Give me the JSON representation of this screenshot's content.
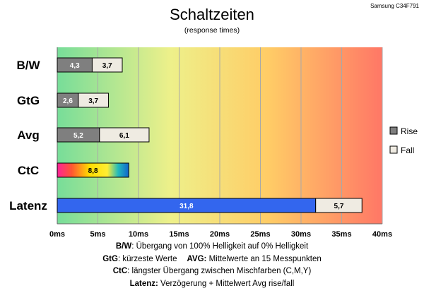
{
  "chart_data": {
    "type": "bar",
    "title": "Schaltzeiten",
    "subtitle": "(response times)",
    "corner_label": "Samsung C34F791",
    "categories": [
      "B/W",
      "GtG",
      "Avg",
      "CtC",
      "Latenz"
    ],
    "series": [
      {
        "name": "Rise",
        "color": "#7f7f7f",
        "values": [
          4.3,
          2.6,
          5.2,
          null,
          null
        ]
      },
      {
        "name": "Fall",
        "color": "#efebe2",
        "values": [
          3.7,
          3.7,
          6.1,
          null,
          5.7
        ]
      }
    ],
    "ctc_value": 8.8,
    "latenz_value": 31.8,
    "latenz_color": "#3366ee",
    "x_ticks": [
      "0ms",
      "5ms",
      "10ms",
      "15ms",
      "20ms",
      "25ms",
      "30ms",
      "35ms",
      "40ms"
    ],
    "xlim": [
      0,
      40
    ],
    "stacked": true,
    "orientation": "horizontal",
    "grid": true,
    "legend_position": "right",
    "background_gradient": [
      "#77dd99",
      "#eef08a",
      "#ffcc66",
      "#ff7766"
    ]
  },
  "footer": {
    "line1_key": "B/W",
    "line1_text": ":  Übergang von 100% Helligkeit auf 0% Helligkeit",
    "line2_key_a": "GtG",
    "line2_text_a": ": kürzeste  Werte",
    "line2_key_b": "AVG:",
    "line2_text_b": " Mittelwerte  an 15 Messpunkten",
    "line3_key": "CtC",
    "line3_text": ": längster Übergang  zwischen Mischfarben (C,M,Y)",
    "line4_key": "Latenz:",
    "line4_text": " Verzögerung  + Mittelwert Avg rise/fall"
  }
}
